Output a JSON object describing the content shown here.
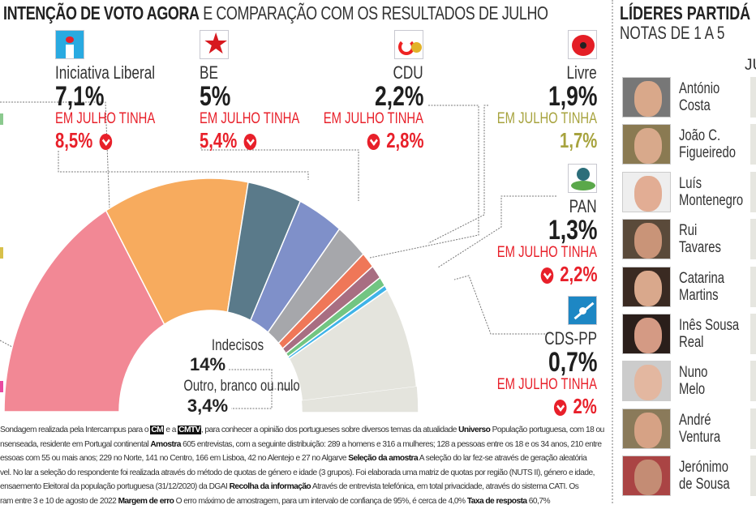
{
  "header": {
    "title_bold": "INTENÇÃO DE VOTO AGORA",
    "title_rest": "E COMPARAÇÃO COM OS RESULTADOS DE JULHO"
  },
  "parties": {
    "il": {
      "name": "Iniciativa Liberal",
      "value": "7,1%",
      "july_label": "EM JULHO TINHA",
      "july_value": "8,5%",
      "trend": "down"
    },
    "be": {
      "name": "BE",
      "value": "5%",
      "july_label": "EM JULHO TINHA",
      "july_value": "5,4%",
      "trend": "down"
    },
    "cdu": {
      "name": "CDU",
      "value": "2,2%",
      "july_label": "EM JULHO TINHA",
      "july_value": "2,8%",
      "trend": "down"
    },
    "livre": {
      "name": "Livre",
      "value": "1,9%",
      "july_label": "EM JULHO TINHA",
      "july_value": "1,7%",
      "trend": "up"
    },
    "pan": {
      "name": "PAN",
      "value": "1,3%",
      "july_label": "EM JULHO TINHA",
      "july_value": "2,2%",
      "trend": "down"
    },
    "cds": {
      "name": "CDS-PP",
      "value": "0,7%",
      "july_label": "EM JULHO TINHA",
      "july_value": "2%",
      "trend": "down"
    }
  },
  "chart_data": {
    "type": "pie",
    "variant": "half-donut",
    "title": "INTENÇÃO DE VOTO AGORA E COMPARAÇÃO COM OS RESULTADOS DE JULHO",
    "categories": [
      "",
      "",
      "",
      "Iniciativa Liberal",
      "BE",
      "CDU",
      "Livre",
      "PAN",
      "CDS-PP",
      "Indecisos",
      "Outro, branco ou nulo"
    ],
    "values": [
      32.9,
      22.6,
      8.4,
      7.1,
      5,
      2.2,
      1.9,
      1.3,
      0.7,
      14,
      3.4
    ],
    "colors": [
      "#f28895",
      "#f7ab5e",
      "#5a7a8a",
      "#7f90c9",
      "#a6a7ab",
      "#ef7758",
      "#a86e82",
      "#72c582",
      "#3fb3e8",
      "#e4e4dd",
      "#e4e4dd"
    ],
    "center_labels": {
      "undecided_label": "Indecisos",
      "undecided_value": "14%",
      "other_label": "Outro, branco ou nulo",
      "other_value": "3,4%"
    }
  },
  "leaders": {
    "title": "LÍDERES PARTIDÁ",
    "subtitle": "NOTAS DE 1 A 5",
    "column_header": "JU",
    "rows": [
      {
        "name1": "António",
        "name2": "Costa"
      },
      {
        "name1": "João C.",
        "name2": "Figueiredo"
      },
      {
        "name1": "Luís",
        "name2": "Montenegro"
      },
      {
        "name1": "Rui",
        "name2": "Tavares"
      },
      {
        "name1": "Catarina",
        "name2": "Martins"
      },
      {
        "name1": "Inês Sousa",
        "name2": "Real"
      },
      {
        "name1": "Nuno",
        "name2": "Melo"
      },
      {
        "name1": "André",
        "name2": "Ventura"
      },
      {
        "name1": "Jerónimo",
        "name2": "de Sousa"
      }
    ]
  },
  "footnote": [
    [
      {
        "t": "Sondagem realizada pela Intercampus para o "
      },
      {
        "t": "CM",
        "box": true
      },
      {
        "t": " e a "
      },
      {
        "t": "CMTV",
        "box": true
      },
      {
        "t": ", para conhecer a opinião dos portugueses sobre diversos temas da atualidade "
      },
      {
        "t": "Universo",
        "b": true
      },
      {
        "t": " População portuguesa, com 18 ou"
      }
    ],
    [
      {
        "t": "nsenseada, residente em Portugal continental "
      },
      {
        "t": "Amostra",
        "b": true
      },
      {
        "t": " 605 entrevistas, com a seguinte distribuição: 289 a homens e 316 a mulheres; 128 a pessoas entre os 18 e os 34 anos, 210 entre"
      }
    ],
    [
      {
        "t": "essoas com 55 ou mais anos; 229 no Norte, 141 no Centro, 166 em Lisboa, 42 no Alentejo e 27 no Algarve "
      },
      {
        "t": "Seleção da amostra",
        "b": true
      },
      {
        "t": " A seleção do lar fez-se através de geração aleatória"
      }
    ],
    [
      {
        "t": "vel. No lar a seleção do respondente foi realizada através do método de quotas de género e idade (3 grupos). Foi elaborada uma matriz de quotas por região (NUTS II), género e idade,"
      }
    ],
    [
      {
        "t": "ensaemento Eleitoral da população portuguesa (31/12/2020) da DGAI "
      },
      {
        "t": "Recolha da informação",
        "b": true
      },
      {
        "t": " Através de entrevista telefónica, em total privacidade, através do sistema CATI. Os"
      }
    ],
    [
      {
        "t": "ram entre 3 e 10 de agosto de 2022 "
      },
      {
        "t": "Margem de erro",
        "b": true
      },
      {
        "t": " O erro máximo de amostragem, para um intervalo de confiança de 95%, é cerca de 4,0% "
      },
      {
        "t": "Taxa de resposta",
        "b": true
      },
      {
        "t": " 60,7%"
      }
    ]
  ]
}
